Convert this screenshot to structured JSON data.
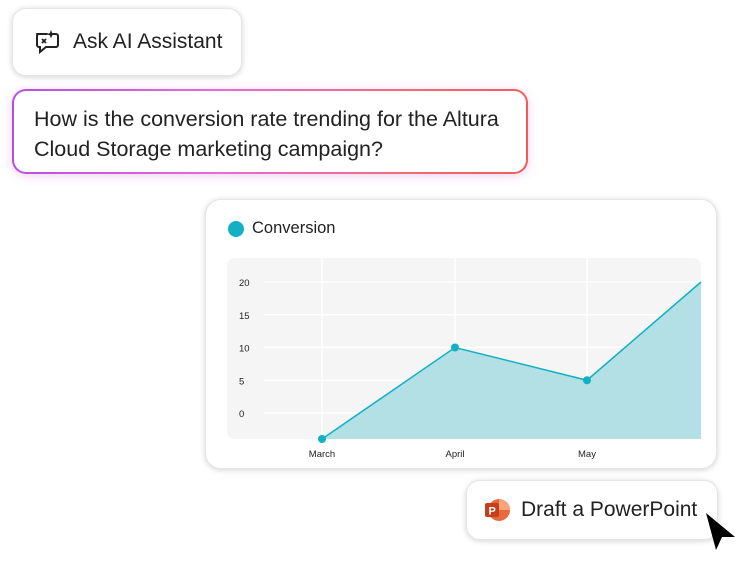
{
  "assistant_button": {
    "label": "Ask AI Assistant",
    "icon": "ai-chat-sparkle-icon"
  },
  "prompt": {
    "text": "How is the conversion rate trending for the Altura Cloud Storage marketing campaign?"
  },
  "chart_data": {
    "type": "area",
    "categories": [
      "March",
      "April",
      "May",
      ""
    ],
    "series": [
      {
        "name": "Conversion",
        "values": [
          -4,
          10,
          5,
          20
        ],
        "color": "#12b0c2"
      }
    ],
    "yticks": [
      0,
      5,
      10,
      15,
      20
    ],
    "ylim": [
      -4,
      24
    ],
    "grid": true,
    "legend": "top-left",
    "area_color": "#b2e0e5",
    "plot_background": "#f5f5f5"
  },
  "action_button": {
    "label": "Draft a PowerPoint",
    "icon": "powerpoint-icon",
    "icon_color": "#d04a25"
  }
}
